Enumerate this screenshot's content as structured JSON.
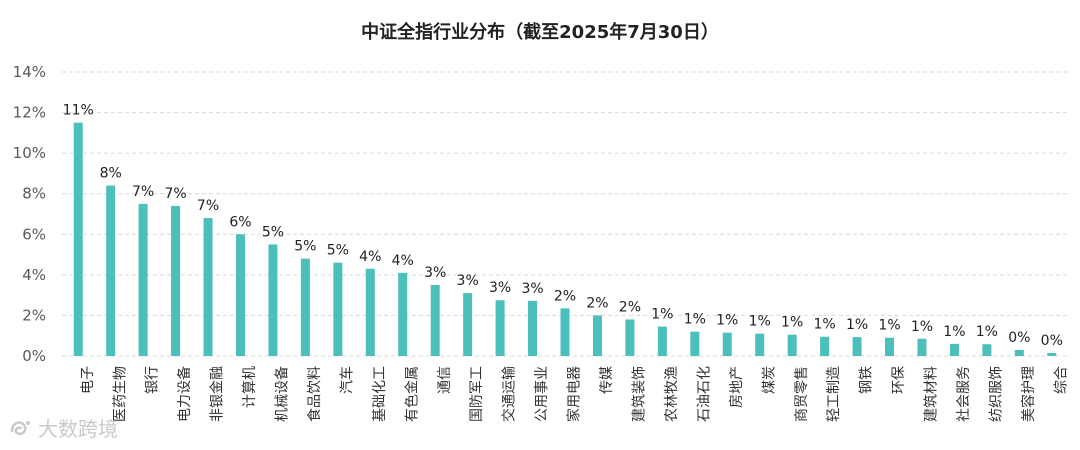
{
  "watermark": {
    "text": "大数跨境",
    "logo_icon": "brand-logo"
  },
  "chart_data": {
    "type": "bar",
    "title": "中证全指行业分布（截至2025年7月30日）",
    "xlabel": "",
    "ylabel": "",
    "ylim": [
      0,
      14
    ],
    "yticks": [
      "0%",
      "2%",
      "4%",
      "6%",
      "8%",
      "10%",
      "12%",
      "14%"
    ],
    "grid": true,
    "bar_color": "#4bbfbb",
    "categories": [
      "电子",
      "医药生物",
      "银行",
      "电力设备",
      "非银金融",
      "计算机",
      "机械设备",
      "食品饮料",
      "汽车",
      "基础化工",
      "有色金属",
      "通信",
      "国防军工",
      "交通运输",
      "公用事业",
      "家用电器",
      "传媒",
      "建筑装饰",
      "农林牧渔",
      "石油石化",
      "房地产",
      "煤炭",
      "商贸零售",
      "轻工制造",
      "钢铁",
      "环保",
      "建筑材料",
      "社会服务",
      "纺织服饰",
      "美容护理",
      "综合"
    ],
    "values": [
      11.5,
      8.4,
      7.5,
      7.4,
      6.8,
      6.0,
      5.5,
      4.8,
      4.6,
      4.3,
      4.1,
      3.5,
      3.1,
      2.75,
      2.72,
      2.35,
      2.0,
      1.8,
      1.45,
      1.2,
      1.15,
      1.1,
      1.05,
      0.95,
      0.93,
      0.9,
      0.85,
      0.6,
      0.58,
      0.3,
      0.15
    ],
    "labels": [
      "11%",
      "8%",
      "7%",
      "7%",
      "7%",
      "6%",
      "5%",
      "5%",
      "5%",
      "4%",
      "4%",
      "3%",
      "3%",
      "3%",
      "3%",
      "2%",
      "2%",
      "2%",
      "1%",
      "1%",
      "1%",
      "1%",
      "1%",
      "1%",
      "1%",
      "1%",
      "1%",
      "1%",
      "1%",
      "0%",
      "0%"
    ]
  }
}
